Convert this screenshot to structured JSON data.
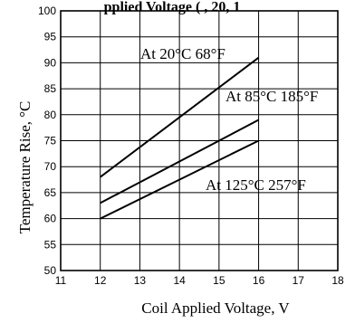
{
  "chart_data": {
    "type": "line",
    "title": "pplied Voltage ( , 20, 1",
    "xlabel": "Coil Applied Voltage, V",
    "ylabel": "Temperature Rise, °C",
    "xlim": [
      11,
      18
    ],
    "ylim": [
      50,
      100
    ],
    "xticks": [
      "11",
      "12",
      "13",
      "14",
      "15",
      "16",
      "17",
      "18"
    ],
    "yticks": [
      "50",
      "55",
      "60",
      "65",
      "70",
      "75",
      "80",
      "85",
      "90",
      "95",
      "100"
    ],
    "grid": true,
    "series": [
      {
        "name": "At 20°C 68°F",
        "x": [
          12,
          16
        ],
        "y": [
          68,
          91
        ]
      },
      {
        "name": "At 85°C 185°F",
        "x": [
          12,
          16
        ],
        "y": [
          63,
          79
        ]
      },
      {
        "name": "At 125°C 257°F",
        "x": [
          12,
          16
        ],
        "y": [
          60,
          75
        ]
      }
    ]
  }
}
